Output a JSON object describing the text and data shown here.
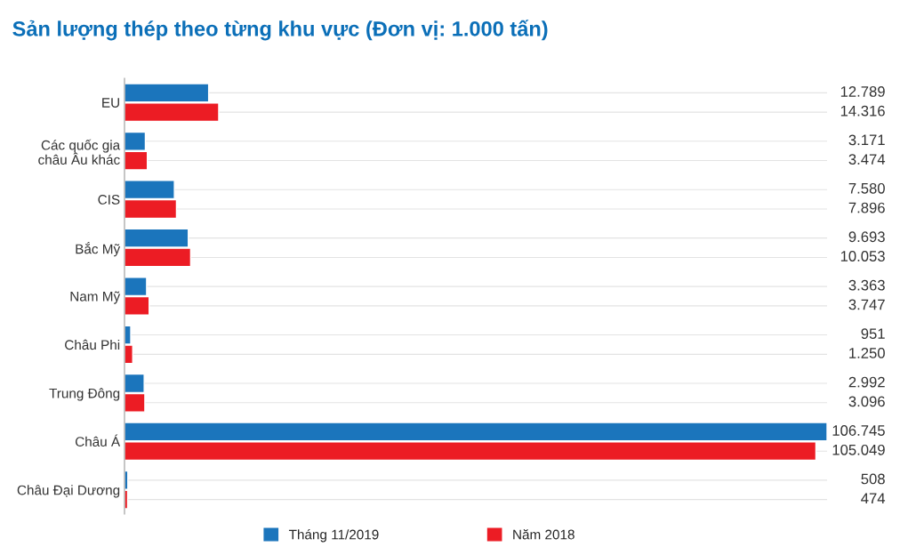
{
  "chart_data": {
    "type": "bar",
    "orientation": "horizontal",
    "title": "Sản lượng thép theo từng khu vực (Đơn vị: 1.000 tấn)",
    "categories": [
      "EU",
      "Các quốc gia\nchâu Âu khác",
      "CIS",
      "Bắc Mỹ",
      "Nam Mỹ",
      "Châu Phi",
      "Trung Đông",
      "Châu Á",
      "Châu Đại Dương"
    ],
    "series": [
      {
        "name": "Tháng 11/2019",
        "color": "#1b75bc",
        "values": [
          12789,
          3171,
          7580,
          9693,
          3363,
          951,
          2992,
          106745,
          508
        ],
        "value_labels": [
          "12.789",
          "3.171",
          "7.580",
          "9.693",
          "3.363",
          "951",
          "2.992",
          "106.745",
          "508"
        ]
      },
      {
        "name": "Năm 2018",
        "color": "#ec1c24",
        "values": [
          14316,
          3474,
          7896,
          10053,
          3747,
          1250,
          3096,
          105049,
          474
        ],
        "value_labels": [
          "14.316",
          "3.474",
          "7.896",
          "10.053",
          "3.747",
          "1.250",
          "3.096",
          "105.049",
          "474"
        ]
      }
    ],
    "legend": "bottom"
  }
}
